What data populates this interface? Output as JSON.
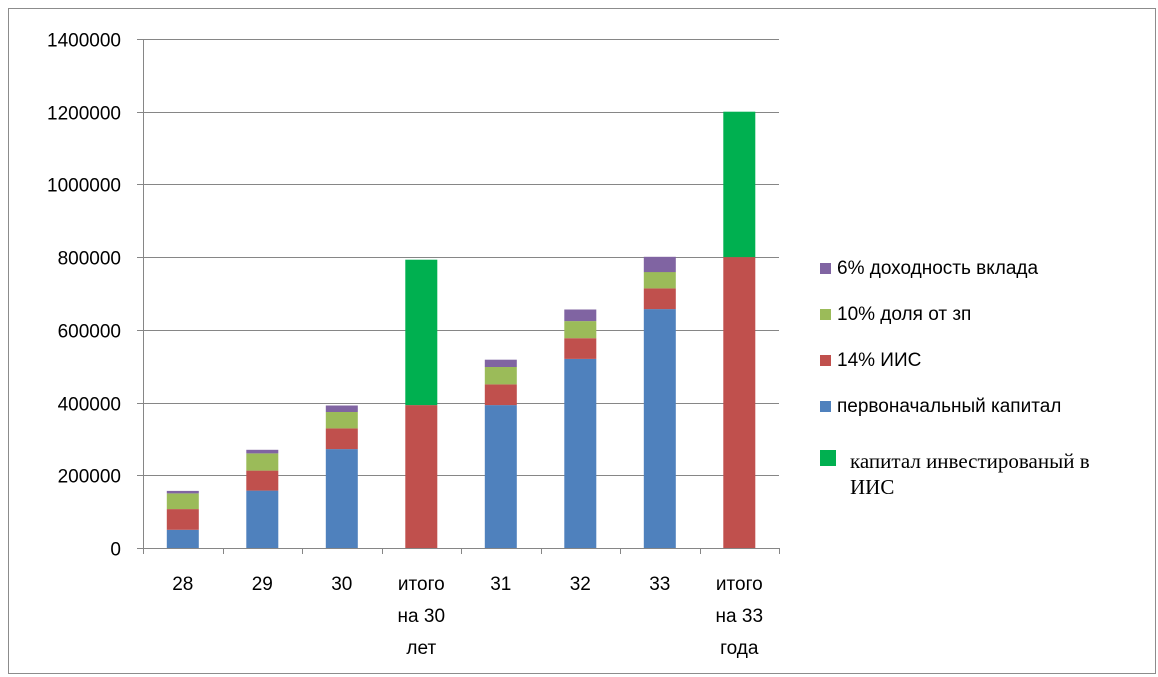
{
  "chart_data": {
    "type": "bar",
    "stacked": true,
    "title": "",
    "xlabel": "",
    "ylabel": "",
    "ylim": [
      0,
      1400000
    ],
    "yticks": [
      0,
      200000,
      400000,
      600000,
      800000,
      1000000,
      1200000,
      1400000
    ],
    "y_tick_labels": [
      "0",
      "200000",
      "400000",
      "600000",
      "800000",
      "1000000",
      "1200000",
      "1400000"
    ],
    "grid": true,
    "legend_position": "right",
    "categories": [
      [
        "28"
      ],
      [
        "29"
      ],
      [
        "30"
      ],
      [
        "итого",
        "на 30",
        "лет"
      ],
      [
        "31"
      ],
      [
        "32"
      ],
      [
        "33"
      ],
      [
        "итого",
        "на 33",
        "года"
      ]
    ],
    "series": [
      {
        "name": "первоначальный капитал",
        "color": "#4f81bd",
        "values": [
          50000,
          158000,
          272000,
          0,
          393000,
          520000,
          657000,
          0
        ]
      },
      {
        "name": "14% ИИС",
        "color": "#c0504d",
        "values": [
          57000,
          55000,
          57000,
          393000,
          57000,
          57000,
          57000,
          800000
        ]
      },
      {
        "name": "10% доля от зп",
        "color": "#9bbb59",
        "values": [
          43000,
          47000,
          45000,
          0,
          48000,
          47000,
          45000,
          0
        ]
      },
      {
        "name": "6% доходность вклада",
        "color": "#8064a2",
        "values": [
          7000,
          10000,
          18000,
          0,
          20000,
          32000,
          42000,
          0
        ]
      },
      {
        "name": "капитал  инвестированый в ИИС",
        "color": "#00b050",
        "values": [
          0,
          0,
          0,
          400000,
          0,
          0,
          0,
          400000
        ]
      }
    ],
    "legend_order": [
      3,
      2,
      1,
      0,
      4
    ]
  }
}
